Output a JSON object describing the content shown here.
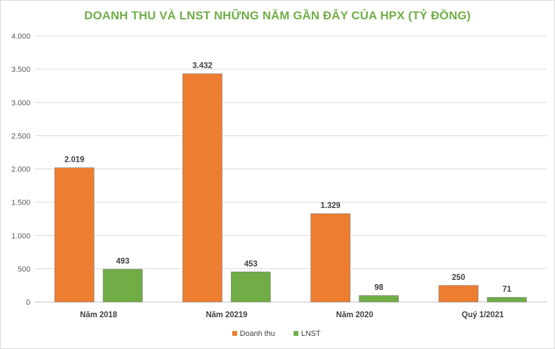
{
  "chart_data": {
    "type": "bar",
    "title": "DOANH THU VÀ LNST NHỮNG NĂM GẦN ĐÂY CỦA HPX (TỶ ĐỒNG)",
    "xlabel": "",
    "ylabel": "",
    "categories": [
      "Năm 2018",
      "Năm 20219",
      "Năm 2020",
      "Quý 1/2021"
    ],
    "series": [
      {
        "name": "Doanh thu",
        "values": [
          2019,
          3432,
          1329,
          250
        ],
        "labels": [
          "2.019",
          "3.432",
          "1.329",
          "250"
        ],
        "color": "#ed7d31"
      },
      {
        "name": "LNST",
        "values": [
          493,
          453,
          98,
          71
        ],
        "labels": [
          "493",
          "453",
          "98",
          "71"
        ],
        "color": "#70ad47"
      }
    ],
    "ylim": [
      0,
      4000
    ],
    "yticks": [
      0,
      500,
      1000,
      1500,
      2000,
      2500,
      3000,
      3500,
      4000
    ],
    "ytick_labels": [
      "0",
      "500",
      "1.000",
      "1.500",
      "2.000",
      "2.500",
      "3.000",
      "3.500",
      "4.000"
    ],
    "grid": true,
    "legend": "bottom",
    "title_color": "#70ad47"
  }
}
